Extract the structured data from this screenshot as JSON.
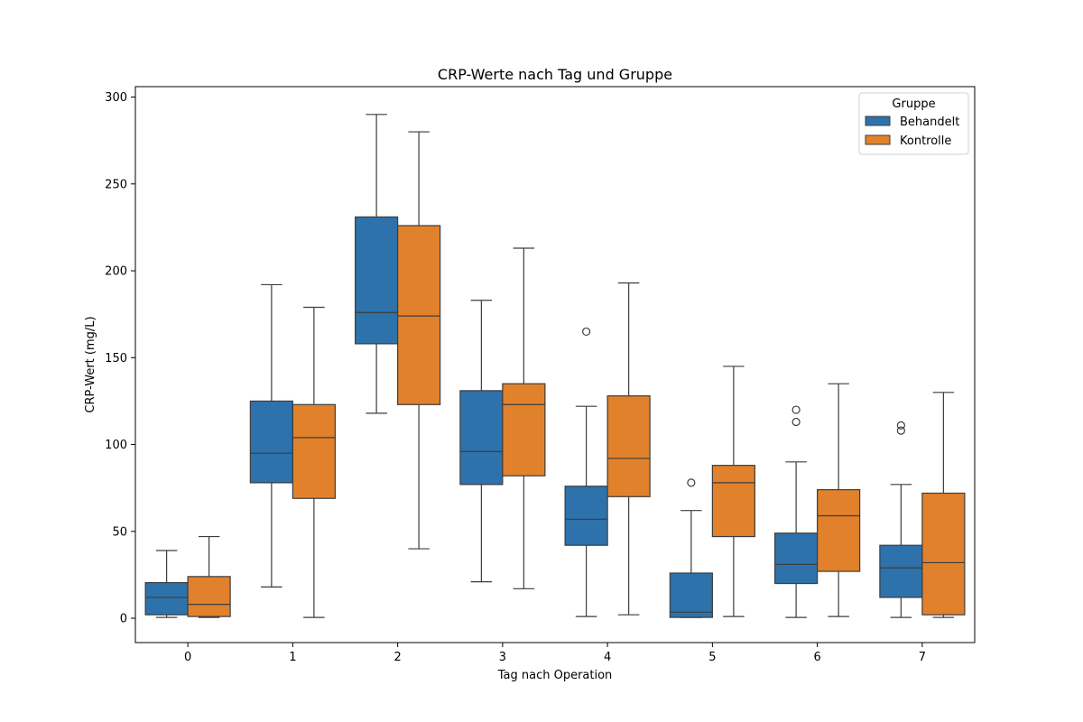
{
  "chart_data": {
    "type": "box",
    "title": "CRP-Werte nach Tag und Gruppe",
    "xlabel": "Tag nach Operation",
    "ylabel": "CRP-Wert (mg/L)",
    "categories": [
      "0",
      "1",
      "2",
      "3",
      "4",
      "5",
      "6",
      "7"
    ],
    "ylim": [
      -14,
      306
    ],
    "yticks": [
      0,
      50,
      100,
      150,
      200,
      250,
      300
    ],
    "grid": false,
    "legend": {
      "title": "Gruppe",
      "placement": "top-right"
    },
    "series": [
      {
        "name": "Behandelt",
        "color": "#2d72ab",
        "boxes": [
          {
            "whislo": 0.5,
            "q1": 2,
            "med": 12,
            "q3": 20.5,
            "whishi": 39,
            "fliers": []
          },
          {
            "whislo": 18,
            "q1": 78,
            "med": 95,
            "q3": 125,
            "whishi": 192,
            "fliers": []
          },
          {
            "whislo": 118,
            "q1": 158,
            "med": 176,
            "q3": 231,
            "whishi": 290,
            "fliers": []
          },
          {
            "whislo": 21,
            "q1": 77,
            "med": 96,
            "q3": 131,
            "whishi": 183,
            "fliers": []
          },
          {
            "whislo": 1,
            "q1": 42,
            "med": 57,
            "q3": 76,
            "whishi": 122,
            "fliers": [
              165
            ]
          },
          {
            "whislo": 0.5,
            "q1": 0.5,
            "med": 3.5,
            "q3": 26,
            "whishi": 62,
            "fliers": [
              78
            ]
          },
          {
            "whislo": 0.5,
            "q1": 20,
            "med": 31,
            "q3": 49,
            "whishi": 90,
            "fliers": [
              113,
              120
            ]
          },
          {
            "whislo": 0.5,
            "q1": 12,
            "med": 29,
            "q3": 42,
            "whishi": 77,
            "fliers": [
              108,
              111
            ]
          }
        ]
      },
      {
        "name": "Kontrolle",
        "color": "#e1812c",
        "boxes": [
          {
            "whislo": 0.5,
            "q1": 1,
            "med": 8,
            "q3": 24,
            "whishi": 47,
            "fliers": []
          },
          {
            "whislo": 0.5,
            "q1": 69,
            "med": 104,
            "q3": 123,
            "whishi": 179,
            "fliers": []
          },
          {
            "whislo": 40,
            "q1": 123,
            "med": 174,
            "q3": 226,
            "whishi": 280,
            "fliers": []
          },
          {
            "whislo": 17,
            "q1": 82,
            "med": 123,
            "q3": 135,
            "whishi": 213,
            "fliers": []
          },
          {
            "whislo": 2,
            "q1": 70,
            "med": 92,
            "q3": 128,
            "whishi": 193,
            "fliers": []
          },
          {
            "whislo": 1,
            "q1": 47,
            "med": 78,
            "q3": 88,
            "whishi": 145,
            "fliers": []
          },
          {
            "whislo": 1,
            "q1": 27,
            "med": 59,
            "q3": 74,
            "whishi": 135,
            "fliers": []
          },
          {
            "whislo": 0.5,
            "q1": 2,
            "med": 32,
            "q3": 72,
            "whishi": 130,
            "fliers": []
          }
        ]
      }
    ]
  }
}
